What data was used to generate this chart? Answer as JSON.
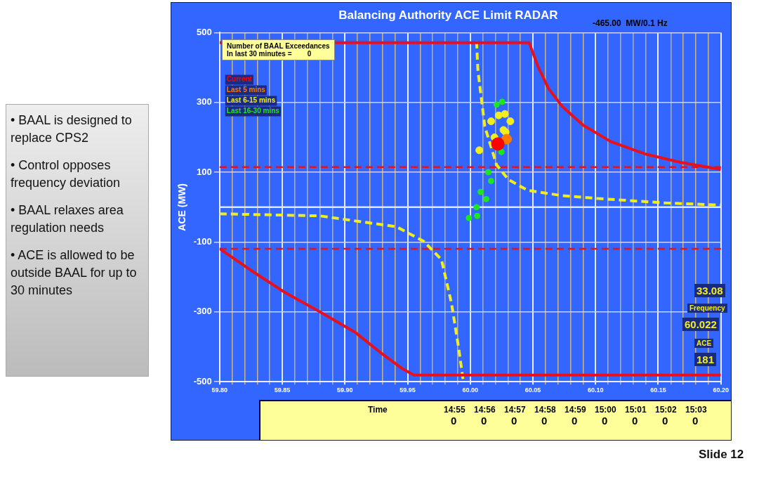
{
  "chart_data": {
    "type": "scatter",
    "title": "Balancing Authority ACE Limit RADAR",
    "ylabel": "ACE (MW)",
    "xlim": [
      59.8,
      60.2
    ],
    "ylim": [
      -500,
      500
    ],
    "xticks": [
      {
        "value": 59.8,
        "label": "59.80"
      },
      {
        "value": 59.81,
        "label": null
      },
      {
        "value": 59.82,
        "label": null
      },
      {
        "value": 59.83,
        "label": null
      },
      {
        "value": 59.84,
        "label": null
      },
      {
        "value": 59.85,
        "label": "59.85"
      },
      {
        "value": 59.86,
        "label": null
      },
      {
        "value": 59.87,
        "label": null
      },
      {
        "value": 59.88,
        "label": null
      },
      {
        "value": 59.89,
        "label": null
      },
      {
        "value": 59.9,
        "label": "59.90"
      },
      {
        "value": 59.91,
        "label": null
      },
      {
        "value": 59.92,
        "label": null
      },
      {
        "value": 59.93,
        "label": null
      },
      {
        "value": 59.94,
        "label": null
      },
      {
        "value": 59.95,
        "label": "59.95"
      },
      {
        "value": 59.96,
        "label": null
      },
      {
        "value": 59.97,
        "label": null
      },
      {
        "value": 59.98,
        "label": null
      },
      {
        "value": 59.99,
        "label": null
      },
      {
        "value": 60.0,
        "label": "60.00"
      },
      {
        "value": 60.01,
        "label": null
      },
      {
        "value": 60.02,
        "label": null
      },
      {
        "value": 60.03,
        "label": null
      },
      {
        "value": 60.04,
        "label": null
      },
      {
        "value": 60.05,
        "label": "60.05"
      },
      {
        "value": 60.06,
        "label": null
      },
      {
        "value": 60.07,
        "label": null
      },
      {
        "value": 60.08,
        "label": null
      },
      {
        "value": 60.09,
        "label": null
      },
      {
        "value": 60.1,
        "label": "60.10"
      },
      {
        "value": 60.11,
        "label": null
      },
      {
        "value": 60.12,
        "label": null
      },
      {
        "value": 60.13,
        "label": null
      },
      {
        "value": 60.14,
        "label": null
      },
      {
        "value": 60.15,
        "label": "60.15"
      },
      {
        "value": 60.16,
        "label": null
      },
      {
        "value": 60.17,
        "label": null
      },
      {
        "value": 60.18,
        "label": null
      },
      {
        "value": 60.19,
        "label": null
      },
      {
        "value": 60.2,
        "label": "60.20"
      }
    ],
    "yticks": [
      -500,
      -300,
      -100,
      100,
      300,
      500
    ],
    "grid": true,
    "legend": "top left",
    "series": [
      {
        "name": "Current",
        "color": "#ff0000",
        "marker": "circle",
        "x": [
          60.022
        ],
        "values": [
          181
        ]
      },
      {
        "name": "Last 5 mins",
        "color": "#ff7a00",
        "marker": "circle",
        "x": [
          60.029
        ],
        "values": [
          195
        ]
      },
      {
        "name": "Last 6-15 mins",
        "color": "#f2ee1e",
        "marker": "circle",
        "x": [
          60.0166,
          60.0193,
          60.0282,
          60.032,
          60.0072,
          60.0227,
          60.0276,
          60.0265
        ],
        "values": [
          246,
          200,
          215,
          246,
          163,
          263,
          267,
          221
        ]
      },
      {
        "name": "Last 16-30 mins",
        "color": "#1ee61e",
        "marker": "circle",
        "x": [
          60.021,
          60.0254,
          60.0249,
          60.0144,
          60.0166,
          60.0083,
          60.0127,
          60.005,
          60.0055,
          59.9989
        ],
        "values": [
          294,
          302,
          158,
          100,
          75,
          44,
          23,
          0,
          -25,
          -31
        ]
      },
      {
        "type": "line",
        "color": "#e8101a",
        "x": [
          59.8,
          60.047,
          60.0541,
          60.0624,
          60.0735,
          60.09,
          60.112,
          60.14,
          60.167,
          60.2
        ],
        "values": [
          471,
          471,
          402,
          340,
          288,
          235,
          188,
          152,
          129,
          108
        ]
      },
      {
        "type": "line",
        "color": "#e8101a",
        "x": [
          59.8,
          59.825,
          59.852,
          59.88,
          59.908,
          59.93,
          59.946,
          59.955,
          60.2
        ],
        "values": [
          -119,
          -181,
          -244,
          -300,
          -358,
          -421,
          -463,
          -481,
          -481
        ]
      },
      {
        "type": "line",
        "line_style": "dashed",
        "color": "#f2ee1e",
        "x": [
          60.005,
          60.0061,
          60.0116,
          60.021,
          60.0304,
          60.0459,
          60.0735,
          60.101,
          60.156,
          60.2
        ],
        "values": [
          475,
          392,
          231,
          121,
          79,
          48,
          33,
          25,
          12,
          6
        ]
      },
      {
        "type": "line",
        "line_style": "dashed",
        "color": "#f2ee1e",
        "x": [
          59.8,
          59.88,
          59.941,
          59.963,
          59.977,
          59.985,
          59.9906,
          59.9945
        ],
        "values": [
          -19,
          -25,
          -56,
          -98,
          -150,
          -275,
          -400,
          -500
        ]
      }
    ],
    "ref_lines": [
      {
        "axis": "y",
        "value": 115,
        "color": "#e8101a",
        "line_style": "dashed"
      },
      {
        "axis": "y",
        "value": -119,
        "color": "#e8101a",
        "line_style": "dashed"
      },
      {
        "axis": "y",
        "value": 0,
        "color": "#dde6ff",
        "line_style": "solid"
      }
    ],
    "annotations": [
      "Number of BAAL Exceedances\nIn last 30 minutes =        0",
      "-465.00  MW/0.1 Hz",
      "33.08",
      "Frequency",
      "60.022",
      "ACE",
      "181",
      "Time",
      "14:55",
      "14:56",
      "14:57",
      "14:58",
      "14:59",
      "15:00",
      "15:01",
      "15:02",
      "15:03",
      "0",
      "0",
      "0",
      "0",
      "0",
      "0",
      "0",
      "0",
      "0",
      "• BAAL is designed to replace CPS2",
      "• Control opposes frequency deviation",
      "• BAAL relaxes area regulation needs",
      "• ACE is allowed to be outside BAAL for up to 30 minutes",
      "Slide 12"
    ]
  }
}
